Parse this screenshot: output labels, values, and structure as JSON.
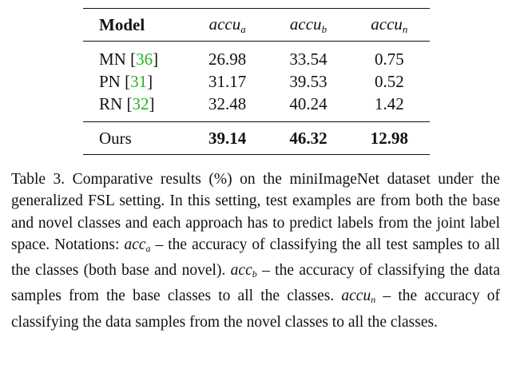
{
  "table": {
    "headers": {
      "model": "Model",
      "acc_a": {
        "base": "accu",
        "sub": "a"
      },
      "acc_b": {
        "base": "accu",
        "sub": "b"
      },
      "acc_n": {
        "base": "accu",
        "sub": "n"
      }
    },
    "rows": [
      {
        "model": "MN",
        "cite_open": "[",
        "cite": "36",
        "cite_close": "]",
        "acc_a": "26.98",
        "acc_b": "33.54",
        "acc_n": "0.75"
      },
      {
        "model": "PN",
        "cite_open": "[",
        "cite": "31",
        "cite_close": "]",
        "acc_a": "31.17",
        "acc_b": "39.53",
        "acc_n": "0.52"
      },
      {
        "model": "RN",
        "cite_open": "[",
        "cite": "32",
        "cite_close": "]",
        "acc_a": "32.48",
        "acc_b": "40.24",
        "acc_n": "1.42"
      }
    ],
    "ours": {
      "model": "Ours",
      "acc_a": "39.14",
      "acc_b": "46.32",
      "acc_n": "12.98"
    }
  },
  "caption": {
    "part1": "Table 3. Comparative results (%) on the miniImageNet dataset under the generalized FSL setting. In this setting, test examples are from both the base and novel classes and each approach has to predict labels from the joint label space. Notations: ",
    "m1_base": "acc",
    "m1_sub": "a",
    "part2": " – the accuracy of classifying the all test samples to all the classes (both base and novel). ",
    "m2_base": "acc",
    "m2_sub": "b",
    "part3": " – the accuracy of classifying the data samples from the base classes to all the classes. ",
    "m3_base": "accu",
    "m3_sub": "n",
    "part4": " – the accuracy of classifying the data samples from the novel classes to all the classes."
  },
  "colors": {
    "citation": "#22b022",
    "text": "#111111"
  }
}
